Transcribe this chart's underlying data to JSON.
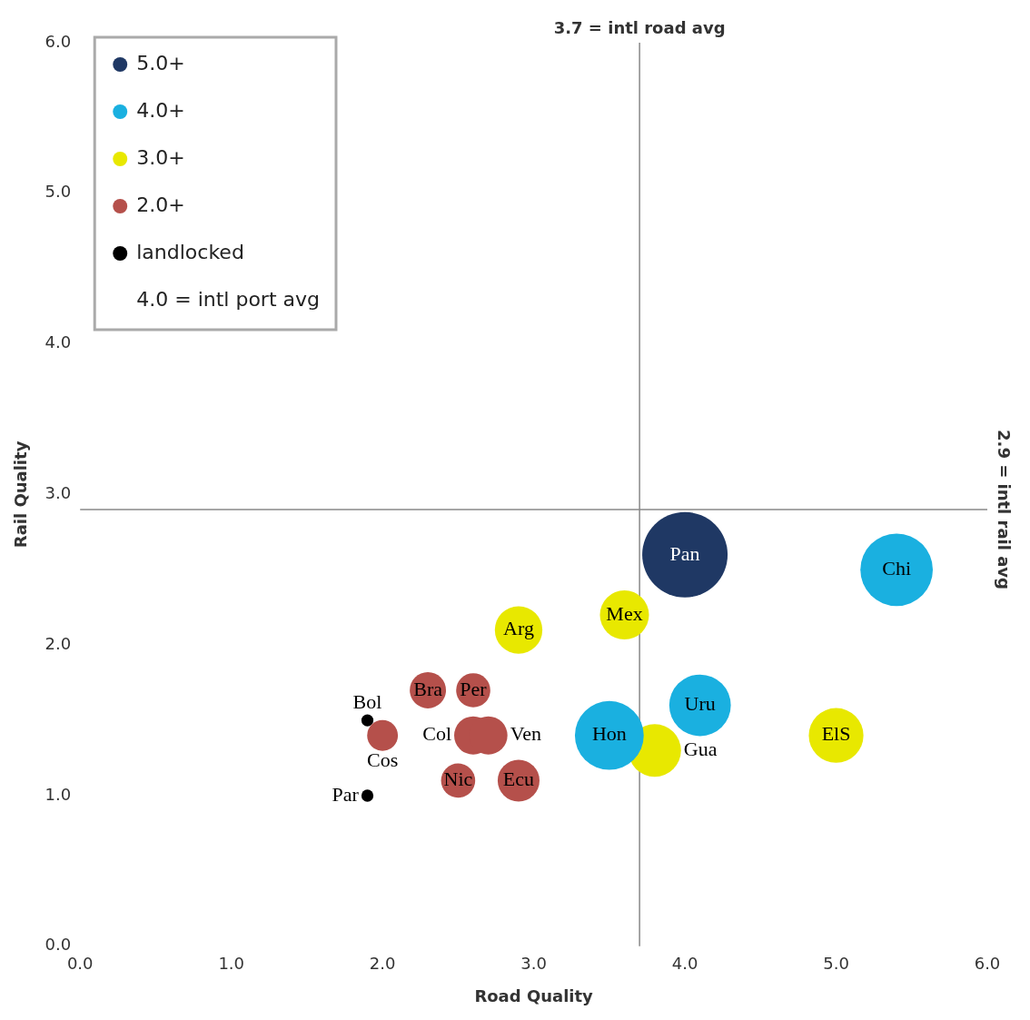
{
  "chart_data": {
    "type": "bubble",
    "xlabel": "Road Quality",
    "ylabel": "Rail Quality",
    "xlim": [
      0,
      6
    ],
    "ylim": [
      0,
      6
    ],
    "xticks": [
      {
        "value": 0,
        "label": "0.0"
      },
      {
        "value": 1,
        "label": "1.0"
      },
      {
        "value": 2,
        "label": "2.0"
      },
      {
        "value": 3,
        "label": "3.0"
      },
      {
        "value": 4,
        "label": "4.0"
      },
      {
        "value": 5,
        "label": "5.0"
      },
      {
        "value": 6,
        "label": "6.0"
      }
    ],
    "yticks": [
      {
        "value": 0,
        "label": "0.0"
      },
      {
        "value": 1,
        "label": "1.0"
      },
      {
        "value": 2,
        "label": "2.0"
      },
      {
        "value": 3,
        "label": "3.0"
      },
      {
        "value": 4,
        "label": "4.0"
      },
      {
        "value": 5,
        "label": "5.0"
      },
      {
        "value": 6,
        "label": "6.0"
      }
    ],
    "grid": false,
    "legend": "top left",
    "series": [
      {
        "name": "5.0+",
        "color": "#1f3864",
        "x": [
          4.0
        ],
        "values": [
          2.6
        ],
        "sizes": [
          1
        ]
      },
      {
        "name": "4.0+",
        "color": "#1ab0e0",
        "x": [
          5.4,
          3.5,
          4.1
        ],
        "values": [
          2.5,
          1.4,
          1.6
        ],
        "sizes": [
          0.72,
          0.65,
          0.52
        ]
      },
      {
        "name": "3.0+",
        "color": "#e8e800",
        "x": [
          3.6,
          2.9,
          3.8,
          5.0
        ],
        "values": [
          2.2,
          2.1,
          1.3,
          1.4
        ],
        "sizes": [
          0.33,
          0.31,
          0.38,
          0.41
        ]
      },
      {
        "name": "2.0+",
        "color": "#b5504b",
        "x": [
          2.3,
          2.6,
          2.0,
          2.6,
          2.7,
          2.5,
          2.9
        ],
        "values": [
          1.7,
          1.7,
          1.4,
          1.4,
          1.4,
          1.1,
          1.1
        ],
        "sizes": [
          0.18,
          0.16,
          0.13,
          0.2,
          0.2,
          0.16,
          0.24
        ]
      },
      {
        "name": "landlocked",
        "color": "#000000",
        "x": [
          1.9,
          1.9
        ],
        "values": [
          1.5,
          1.0
        ],
        "sizes": [
          0.02,
          0.02
        ]
      }
    ],
    "ref_lines": [
      {
        "axis": "x",
        "value": 3.7,
        "label": "3.7 = intl road avg",
        "color": "#888888"
      },
      {
        "axis": "y",
        "value": 2.9,
        "label": "2.9 = intl rail avg",
        "color": "#888888"
      }
    ],
    "annotations": [
      "4.0 = intl port avg",
      {
        "text": "Pan",
        "x": 4.0,
        "y": 2.6
      },
      {
        "text": "Chi",
        "x": 5.4,
        "y": 2.5
      },
      {
        "text": "Hon",
        "x": 3.5,
        "y": 1.4
      },
      {
        "text": "Uru",
        "x": 4.1,
        "y": 1.6
      },
      {
        "text": "Mex",
        "x": 3.6,
        "y": 2.2
      },
      {
        "text": "Arg",
        "x": 2.9,
        "y": 2.1
      },
      {
        "text": "Gua",
        "x": 3.8,
        "y": 1.3
      },
      {
        "text": "ElS",
        "x": 5.0,
        "y": 1.4
      },
      {
        "text": "Bra",
        "x": 2.3,
        "y": 1.7
      },
      {
        "text": "Per",
        "x": 2.6,
        "y": 1.7
      },
      {
        "text": "Cos",
        "x": 2.0,
        "y": 1.4
      },
      {
        "text": "Col",
        "x": 2.6,
        "y": 1.4
      },
      {
        "text": "Ven",
        "x": 2.7,
        "y": 1.4
      },
      {
        "text": "Nic",
        "x": 2.5,
        "y": 1.1
      },
      {
        "text": "Ecu",
        "x": 2.9,
        "y": 1.1
      },
      {
        "text": "Bol",
        "x": 1.9,
        "y": 1.5
      },
      {
        "text": "Par",
        "x": 1.9,
        "y": 1.0
      }
    ]
  }
}
